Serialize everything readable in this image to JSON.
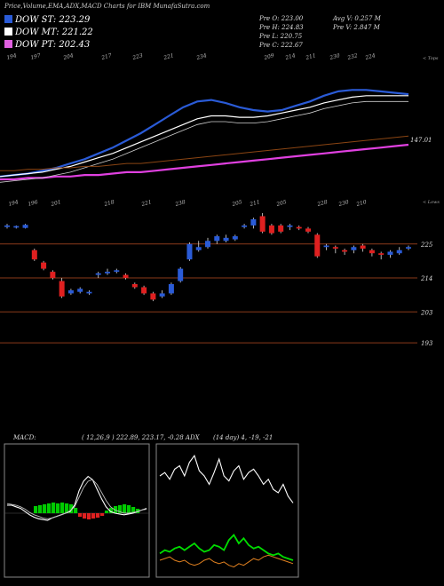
{
  "header": {
    "title": "Price,Volume,EMA,ADX,MACD Charts for IBM MunafaSutra.com"
  },
  "legend": [
    {
      "label": "DOW ST: 223.29",
      "color": "#2a5bd7"
    },
    {
      "label": "DOW MT: 221.22",
      "color": "#ffffff"
    },
    {
      "label": "DOW PT: 202.43",
      "color": "#e060e0"
    }
  ],
  "ohlc": {
    "open": "Pre  O: 223.00",
    "high": "Pre  H: 224.83",
    "low": "Pre  L: 220.75",
    "close": "Pre  C: 222.67",
    "avg_volume": "Avg V: 0.257 M",
    "volume": "Pre  V: 2.847 M"
  },
  "top_ticks": [
    "194",
    "197",
    "204",
    "217",
    "223",
    "221",
    "234",
    "209",
    "214",
    "211",
    "230",
    "232",
    "224"
  ],
  "bottom_ticks": [
    "194",
    "196",
    "201",
    "218",
    "221",
    "238",
    "205",
    "211",
    "205",
    "228",
    "230",
    "210"
  ],
  "side_labels": {
    "tops": "< Tops",
    "lows": "< Lows"
  },
  "ema_label": "147.01",
  "colors": {
    "up": "#2a5bd7",
    "down": "#e02020",
    "hline": "#8b3a1a",
    "ema_brown": "#8b4513",
    "ema_magenta": "#e040e0",
    "adx_green": "#00dd00",
    "adx_orange": "#e08020",
    "macd_green": "#00cc00"
  },
  "chart_data": [
    {
      "type": "line",
      "name": "price-ema-panel",
      "series": [
        {
          "name": "DOW ST",
          "values": [
            140,
            141,
            142,
            144,
            146,
            149,
            152,
            156,
            160,
            165,
            170,
            176,
            182,
            188,
            192,
            193,
            191,
            188,
            186,
            185,
            186,
            189,
            192,
            196,
            199,
            200,
            200,
            199,
            198,
            197
          ]
        },
        {
          "name": "DOW MT",
          "values": [
            140,
            141,
            142,
            143,
            145,
            147,
            150,
            153,
            156,
            160,
            164,
            168,
            172,
            176,
            180,
            182,
            182,
            181,
            181,
            182,
            184,
            186,
            188,
            191,
            193,
            195,
            196,
            196,
            196,
            196
          ]
        },
        {
          "name": "DOW PT",
          "values": [
            138,
            138,
            139,
            139,
            140,
            140,
            141,
            141,
            142,
            143,
            143,
            144,
            145,
            146,
            147,
            148,
            149,
            150,
            151,
            152,
            153,
            154,
            155,
            156,
            157,
            158,
            159,
            160,
            161,
            162
          ]
        }
      ],
      "ylim": [
        130,
        210
      ]
    },
    {
      "type": "candlestick",
      "name": "price-panel",
      "y_ticks": [
        "225",
        "214",
        "203",
        "193"
      ],
      "y_tick_values": [
        225,
        214,
        203,
        193
      ],
      "ylim": [
        189,
        235
      ],
      "candles": [
        {
          "o": 230.5,
          "c": 231,
          "h": 231.5,
          "l": 230,
          "up": true
        },
        {
          "o": 230.3,
          "c": 230.8,
          "h": 231,
          "l": 230,
          "up": true
        },
        {
          "o": 230.2,
          "c": 231.2,
          "h": 231.5,
          "l": 230,
          "up": true
        },
        {
          "o": 223,
          "c": 220,
          "h": 223.5,
          "l": 219.5,
          "up": false
        },
        {
          "o": 219,
          "c": 217,
          "h": 219.5,
          "l": 216.5,
          "up": false
        },
        {
          "o": 216,
          "c": 214,
          "h": 216.5,
          "l": 213.5,
          "up": false
        },
        {
          "o": 213,
          "c": 208,
          "h": 214,
          "l": 207.5,
          "up": false
        },
        {
          "o": 209,
          "c": 210,
          "h": 210.5,
          "l": 208.5,
          "up": true
        },
        {
          "o": 209.5,
          "c": 210.5,
          "h": 211,
          "l": 209,
          "up": true
        },
        {
          "o": 209,
          "c": 209.5,
          "h": 210,
          "l": 208.5,
          "up": true
        },
        {
          "o": 215,
          "c": 215.5,
          "h": 216,
          "l": 214,
          "up": true
        },
        {
          "o": 215.5,
          "c": 216,
          "h": 217,
          "l": 215,
          "up": true
        },
        {
          "o": 216,
          "c": 216.5,
          "h": 217,
          "l": 215.5,
          "up": true
        },
        {
          "o": 215,
          "c": 214,
          "h": 215.5,
          "l": 213.5,
          "up": false
        },
        {
          "o": 212,
          "c": 211,
          "h": 212.5,
          "l": 210.5,
          "up": false
        },
        {
          "o": 211,
          "c": 209,
          "h": 211.5,
          "l": 208.5,
          "up": false
        },
        {
          "o": 209,
          "c": 207,
          "h": 209.5,
          "l": 206.5,
          "up": false
        },
        {
          "o": 208,
          "c": 209,
          "h": 210,
          "l": 207.5,
          "up": true
        },
        {
          "o": 209,
          "c": 212,
          "h": 212.5,
          "l": 208.5,
          "up": true
        },
        {
          "o": 213,
          "c": 217,
          "h": 217.5,
          "l": 212.5,
          "up": true
        },
        {
          "o": 220,
          "c": 225,
          "h": 225.5,
          "l": 219.5,
          "up": true
        },
        {
          "o": 223,
          "c": 224,
          "h": 226,
          "l": 222.5,
          "up": true
        },
        {
          "o": 224,
          "c": 226,
          "h": 227,
          "l": 223.5,
          "up": true
        },
        {
          "o": 226,
          "c": 227.5,
          "h": 228,
          "l": 225,
          "up": true
        },
        {
          "o": 226,
          "c": 227,
          "h": 228,
          "l": 225.5,
          "up": true
        },
        {
          "o": 226.5,
          "c": 227.5,
          "h": 228,
          "l": 226,
          "up": true
        },
        {
          "o": 230.5,
          "c": 231,
          "h": 231.5,
          "l": 230,
          "up": true
        },
        {
          "o": 231,
          "c": 233,
          "h": 233.5,
          "l": 230,
          "up": true
        },
        {
          "o": 234,
          "c": 229,
          "h": 235,
          "l": 228.5,
          "up": false
        },
        {
          "o": 231,
          "c": 228.5,
          "h": 231.5,
          "l": 228,
          "up": false
        },
        {
          "o": 231,
          "c": 229,
          "h": 231.5,
          "l": 228.5,
          "up": false
        },
        {
          "o": 230.5,
          "c": 231,
          "h": 231.5,
          "l": 229.5,
          "up": true
        },
        {
          "o": 230.5,
          "c": 230,
          "h": 231,
          "l": 229.5,
          "up": false
        },
        {
          "o": 230,
          "c": 229,
          "h": 230.5,
          "l": 228.5,
          "up": false
        },
        {
          "o": 228,
          "c": 221,
          "h": 228.5,
          "l": 220.5,
          "up": false
        },
        {
          "o": 224,
          "c": 224.5,
          "h": 225,
          "l": 223,
          "up": true
        },
        {
          "o": 224,
          "c": 223.5,
          "h": 224.5,
          "l": 222,
          "up": false
        },
        {
          "o": 223,
          "c": 222.5,
          "h": 223.5,
          "l": 221.5,
          "up": false
        },
        {
          "o": 223,
          "c": 224,
          "h": 224.5,
          "l": 222,
          "up": true
        },
        {
          "o": 224.5,
          "c": 223.5,
          "h": 225,
          "l": 222.5,
          "up": false
        },
        {
          "o": 223,
          "c": 222,
          "h": 223.5,
          "l": 221,
          "up": false
        },
        {
          "o": 222,
          "c": 221.5,
          "h": 222.5,
          "l": 220,
          "up": false
        },
        {
          "o": 221.5,
          "c": 222.5,
          "h": 223,
          "l": 220.5,
          "up": true
        },
        {
          "o": 222,
          "c": 223,
          "h": 224,
          "l": 221.5,
          "up": true
        },
        {
          "o": 223.5,
          "c": 224,
          "h": 224.5,
          "l": 223,
          "up": true
        }
      ]
    },
    {
      "type": "bar",
      "name": "macd-panel",
      "title": "MACD:",
      "info": "( 12,26,9 ) 222.89,  223.17,  -0.28 ADX",
      "histogram": [
        0.8,
        0.9,
        1.0,
        1.1,
        1.2,
        1.1,
        1.2,
        1.1,
        1.0,
        0.6,
        -0.4,
        -0.6,
        -0.7,
        -0.6,
        -0.5,
        -0.3,
        0.3,
        0.6,
        0.8,
        0.9,
        1.0,
        0.9,
        0.7,
        0.5
      ]
    },
    {
      "type": "line",
      "name": "adx-panel",
      "info": "(14  day) 4,  -19,  -21",
      "series": [
        {
          "name": "ADX",
          "values": [
            60,
            62,
            58,
            64,
            66,
            60,
            68,
            72,
            63,
            60,
            55,
            62,
            70,
            60,
            57,
            63,
            66,
            58,
            62,
            64,
            60,
            55,
            58,
            52,
            50,
            55,
            48,
            44
          ]
        },
        {
          "name": "+DI",
          "values": [
            14,
            16,
            15,
            17,
            18,
            16,
            18,
            20,
            17,
            15,
            16,
            19,
            18,
            16,
            22,
            25,
            20,
            23,
            19,
            17,
            18,
            16,
            14,
            13,
            14,
            12,
            11,
            10
          ]
        },
        {
          "name": "-DI",
          "values": [
            10,
            11,
            12,
            10,
            9,
            10,
            8,
            7,
            8,
            10,
            11,
            9,
            8,
            9,
            7,
            6,
            8,
            7,
            9,
            11,
            10,
            12,
            13,
            12,
            11,
            10,
            9,
            8
          ]
        }
      ]
    }
  ]
}
